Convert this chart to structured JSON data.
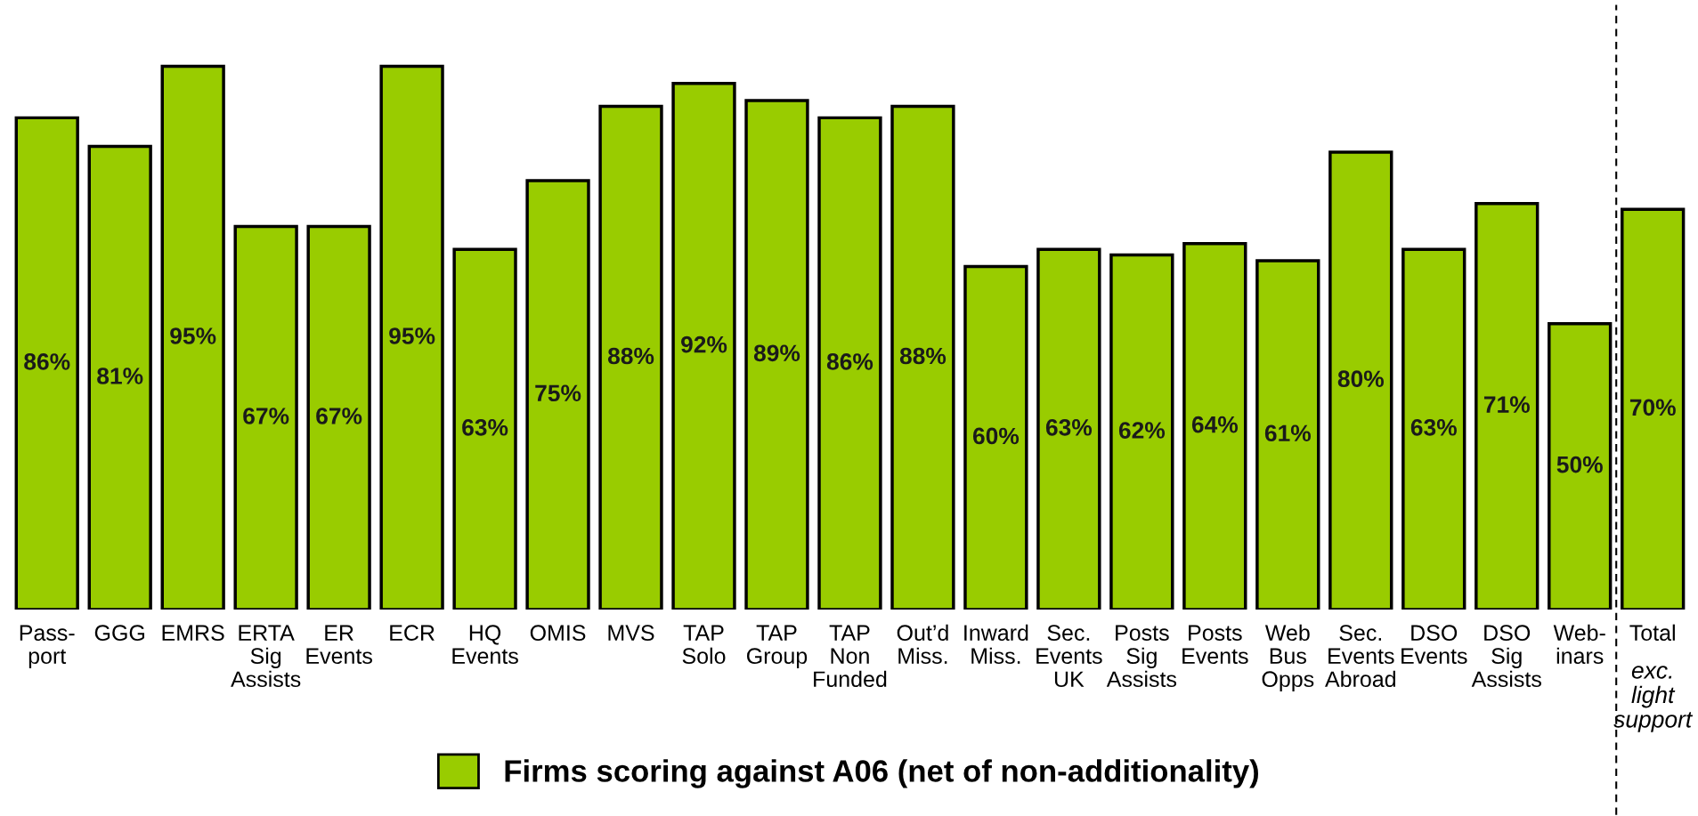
{
  "chart_data": {
    "type": "bar",
    "categories": [
      "Pass-\nport",
      "GGG",
      "EMRS",
      "ERTA\nSig\nAssists",
      "ER\nEvents",
      "ECR",
      "HQ\nEvents",
      "OMIS",
      "MVS",
      "TAP\nSolo",
      "TAP\nGroup",
      "TAP\nNon\nFunded",
      "Out’d\nMiss.",
      "Inward\nMiss.",
      "Sec.\nEvents\nUK",
      "Posts\nSig\nAssists",
      "Posts\nEvents",
      "Web\nBus\nOpps",
      "Sec.\nEvents\nAbroad",
      "DSO\nEvents",
      "DSO\nSig\nAssists",
      "Web-\ninars",
      "Total"
    ],
    "series": [
      {
        "name": "Firms scoring against A06 (net of non-additionality)",
        "color": "#99cc00",
        "values": [
          86,
          81,
          95,
          67,
          67,
          95,
          63,
          75,
          88,
          92,
          89,
          86,
          88,
          60,
          63,
          62,
          64,
          61,
          80,
          63,
          71,
          50,
          70
        ],
        "value_labels": [
          "86%",
          "81%",
          "95%",
          "67%",
          "67%",
          "95%",
          "63%",
          "75%",
          "88%",
          "92%",
          "89%",
          "86%",
          "88%",
          "60%",
          "63%",
          "62%",
          "64%",
          "61%",
          "80%",
          "63%",
          "71%",
          "50%",
          "70%"
        ]
      }
    ],
    "annotations": [
      "exc.\nlight\nsupport"
    ],
    "tick_labels": "x",
    "grid": false,
    "legend": "bottom"
  }
}
